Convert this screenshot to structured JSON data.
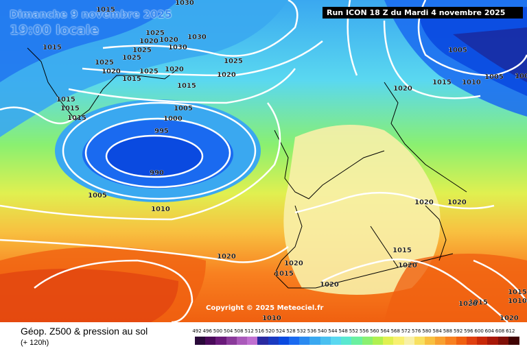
{
  "header": {
    "date": "Dimanche 9 novembre 2025",
    "time": "19:00 locale",
    "run": "Run ICON 18 Z du Mardi 4 novembre 2025"
  },
  "footer": {
    "title": "Géop. Z500 & pression au sol",
    "subtitle": "(+ 120h)",
    "copyright": "Copyright © 2025 Meteociel.fr"
  },
  "legend": {
    "values": [
      "492",
      "496",
      "500",
      "504",
      "508",
      "512",
      "516",
      "520",
      "524",
      "528",
      "532",
      "536",
      "540",
      "544",
      "548",
      "552",
      "556",
      "560",
      "564",
      "568",
      "572",
      "576",
      "580",
      "584",
      "588",
      "592",
      "596",
      "600",
      "604",
      "608",
      "612"
    ],
    "colors": [
      "#2a0a3a",
      "#4a0a5a",
      "#6a1a7a",
      "#8a3a9a",
      "#aa5aba",
      "#c070d0",
      "#2a2aa0",
      "#1a3ac0",
      "#0a4ae0",
      "#1a6af0",
      "#2a8af0",
      "#3aa8f0",
      "#4ac0f0",
      "#5ad8f0",
      "#5ae8d0",
      "#6af0a0",
      "#8af070",
      "#b0f050",
      "#e0f050",
      "#f8f070",
      "#f8f0a8",
      "#f8e060",
      "#f8c040",
      "#f8a030",
      "#f88020",
      "#f06010",
      "#e04010",
      "#c82808",
      "#a81808",
      "#801008",
      "#400404"
    ]
  },
  "map": {
    "isobars": [
      {
        "value": "1015"
      },
      {
        "value": "1030"
      },
      {
        "value": "1025"
      },
      {
        "value": "1020"
      },
      {
        "value": "1030"
      },
      {
        "value": "1025"
      },
      {
        "value": "1025"
      },
      {
        "value": "1020"
      },
      {
        "value": "1015"
      },
      {
        "value": "1025"
      },
      {
        "value": "1020"
      },
      {
        "value": "1025"
      },
      {
        "value": "1015"
      },
      {
        "value": "1030"
      },
      {
        "value": "1020"
      },
      {
        "value": "1015"
      },
      {
        "value": "1005"
      },
      {
        "value": "1000"
      },
      {
        "value": "995"
      },
      {
        "value": "990"
      },
      {
        "value": "1005"
      },
      {
        "value": "1010"
      },
      {
        "value": "1020"
      },
      {
        "value": "1020"
      },
      {
        "value": "1015"
      },
      {
        "value": "1020"
      },
      {
        "value": "1020"
      },
      {
        "value": "1015"
      },
      {
        "value": "1020"
      },
      {
        "value": "1020"
      },
      {
        "value": "1025"
      },
      {
        "value": "1015"
      },
      {
        "value": "1015"
      },
      {
        "value": "1010"
      },
      {
        "value": "1010"
      },
      {
        "value": "1015"
      },
      {
        "value": "1015"
      },
      {
        "value": "1020"
      },
      {
        "value": "1005"
      },
      {
        "value": "1015"
      },
      {
        "value": "1010"
      },
      {
        "value": "1005"
      },
      {
        "value": "1000"
      },
      {
        "value": "1020"
      },
      {
        "value": "1020"
      },
      {
        "value": "1015"
      },
      {
        "value": "1020"
      }
    ]
  }
}
